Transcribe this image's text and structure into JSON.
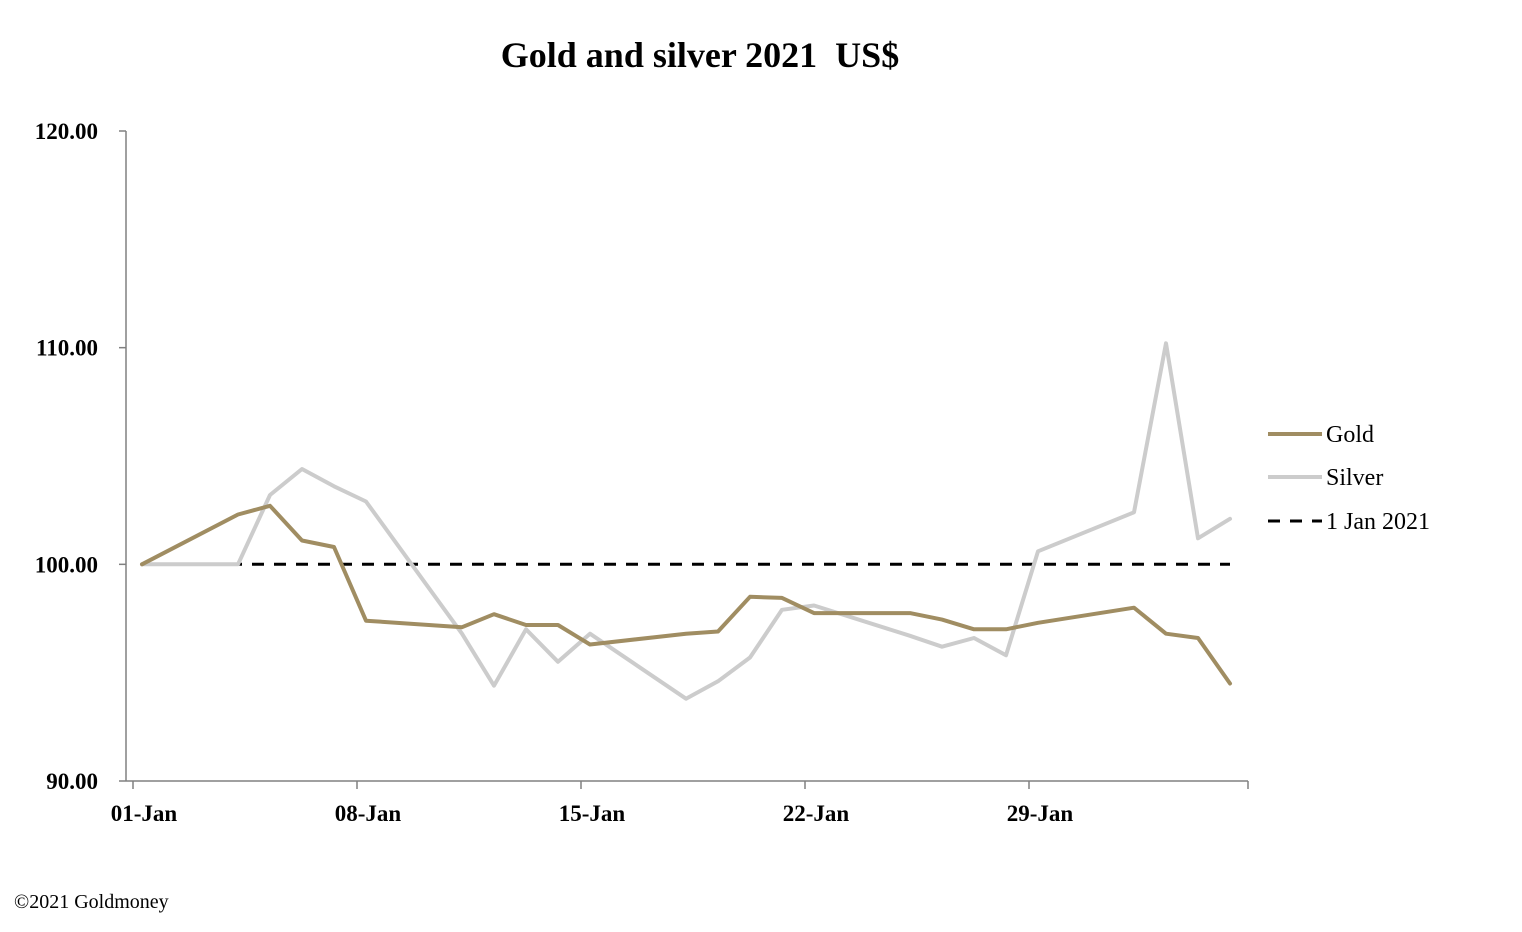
{
  "chart_data": {
    "type": "line",
    "title": "Gold and silver 2021  US$",
    "xlabel": "",
    "ylabel": "",
    "ylim": [
      90,
      120
    ],
    "yticks": [
      "120.00",
      "110.00",
      "100.00",
      "90.00"
    ],
    "ytick_values": [
      120,
      110,
      100,
      90
    ],
    "xticks": [
      "01-Jan",
      "08-Jan",
      "15-Jan",
      "22-Jan",
      "29-Jan"
    ],
    "xtick_days": [
      1,
      8,
      15,
      22,
      29
    ],
    "xlim_days": [
      1,
      36
    ],
    "legend_position": "right",
    "series": [
      {
        "name": "Gold",
        "color": "#a08d62",
        "style": "solid",
        "points": [
          [
            1,
            100.0
          ],
          [
            4,
            102.3
          ],
          [
            5,
            102.7
          ],
          [
            6,
            101.1
          ],
          [
            7,
            100.8
          ],
          [
            8,
            97.4
          ],
          [
            11,
            97.1
          ],
          [
            12,
            97.7
          ],
          [
            13,
            97.2
          ],
          [
            14,
            97.2
          ],
          [
            15,
            96.3
          ],
          [
            18,
            96.8
          ],
          [
            19,
            96.9
          ],
          [
            20,
            98.5
          ],
          [
            21,
            98.45
          ],
          [
            22,
            97.75
          ],
          [
            25,
            97.75
          ],
          [
            26,
            97.45
          ],
          [
            27,
            97.0
          ],
          [
            28,
            97.0
          ],
          [
            29,
            97.3
          ],
          [
            32,
            98.0
          ],
          [
            33,
            96.8
          ],
          [
            34,
            96.6
          ],
          [
            35,
            94.5
          ]
        ]
      },
      {
        "name": "Silver",
        "color": "#cccccc",
        "style": "solid",
        "points": [
          [
            1,
            100.0
          ],
          [
            4,
            100.0
          ],
          [
            5,
            103.2
          ],
          [
            6,
            104.4
          ],
          [
            7,
            103.6
          ],
          [
            8,
            102.9
          ],
          [
            11,
            96.8
          ],
          [
            12,
            94.4
          ],
          [
            13,
            97.0
          ],
          [
            14,
            95.5
          ],
          [
            15,
            96.8
          ],
          [
            18,
            93.8
          ],
          [
            19,
            94.6
          ],
          [
            20,
            95.7
          ],
          [
            21,
            97.9
          ],
          [
            22,
            98.1
          ],
          [
            25,
            96.7
          ],
          [
            26,
            96.2
          ],
          [
            27,
            96.6
          ],
          [
            28,
            95.8
          ],
          [
            29,
            100.6
          ],
          [
            32,
            102.4
          ],
          [
            33,
            110.2
          ],
          [
            34,
            101.2
          ],
          [
            35,
            102.1
          ]
        ]
      },
      {
        "name": "1 Jan 2021",
        "color": "#000000",
        "style": "dashed",
        "points": [
          [
            1,
            100.0
          ],
          [
            35,
            100.0
          ]
        ]
      }
    ]
  },
  "footer": {
    "copyright": "©2021 Goldmoney"
  }
}
